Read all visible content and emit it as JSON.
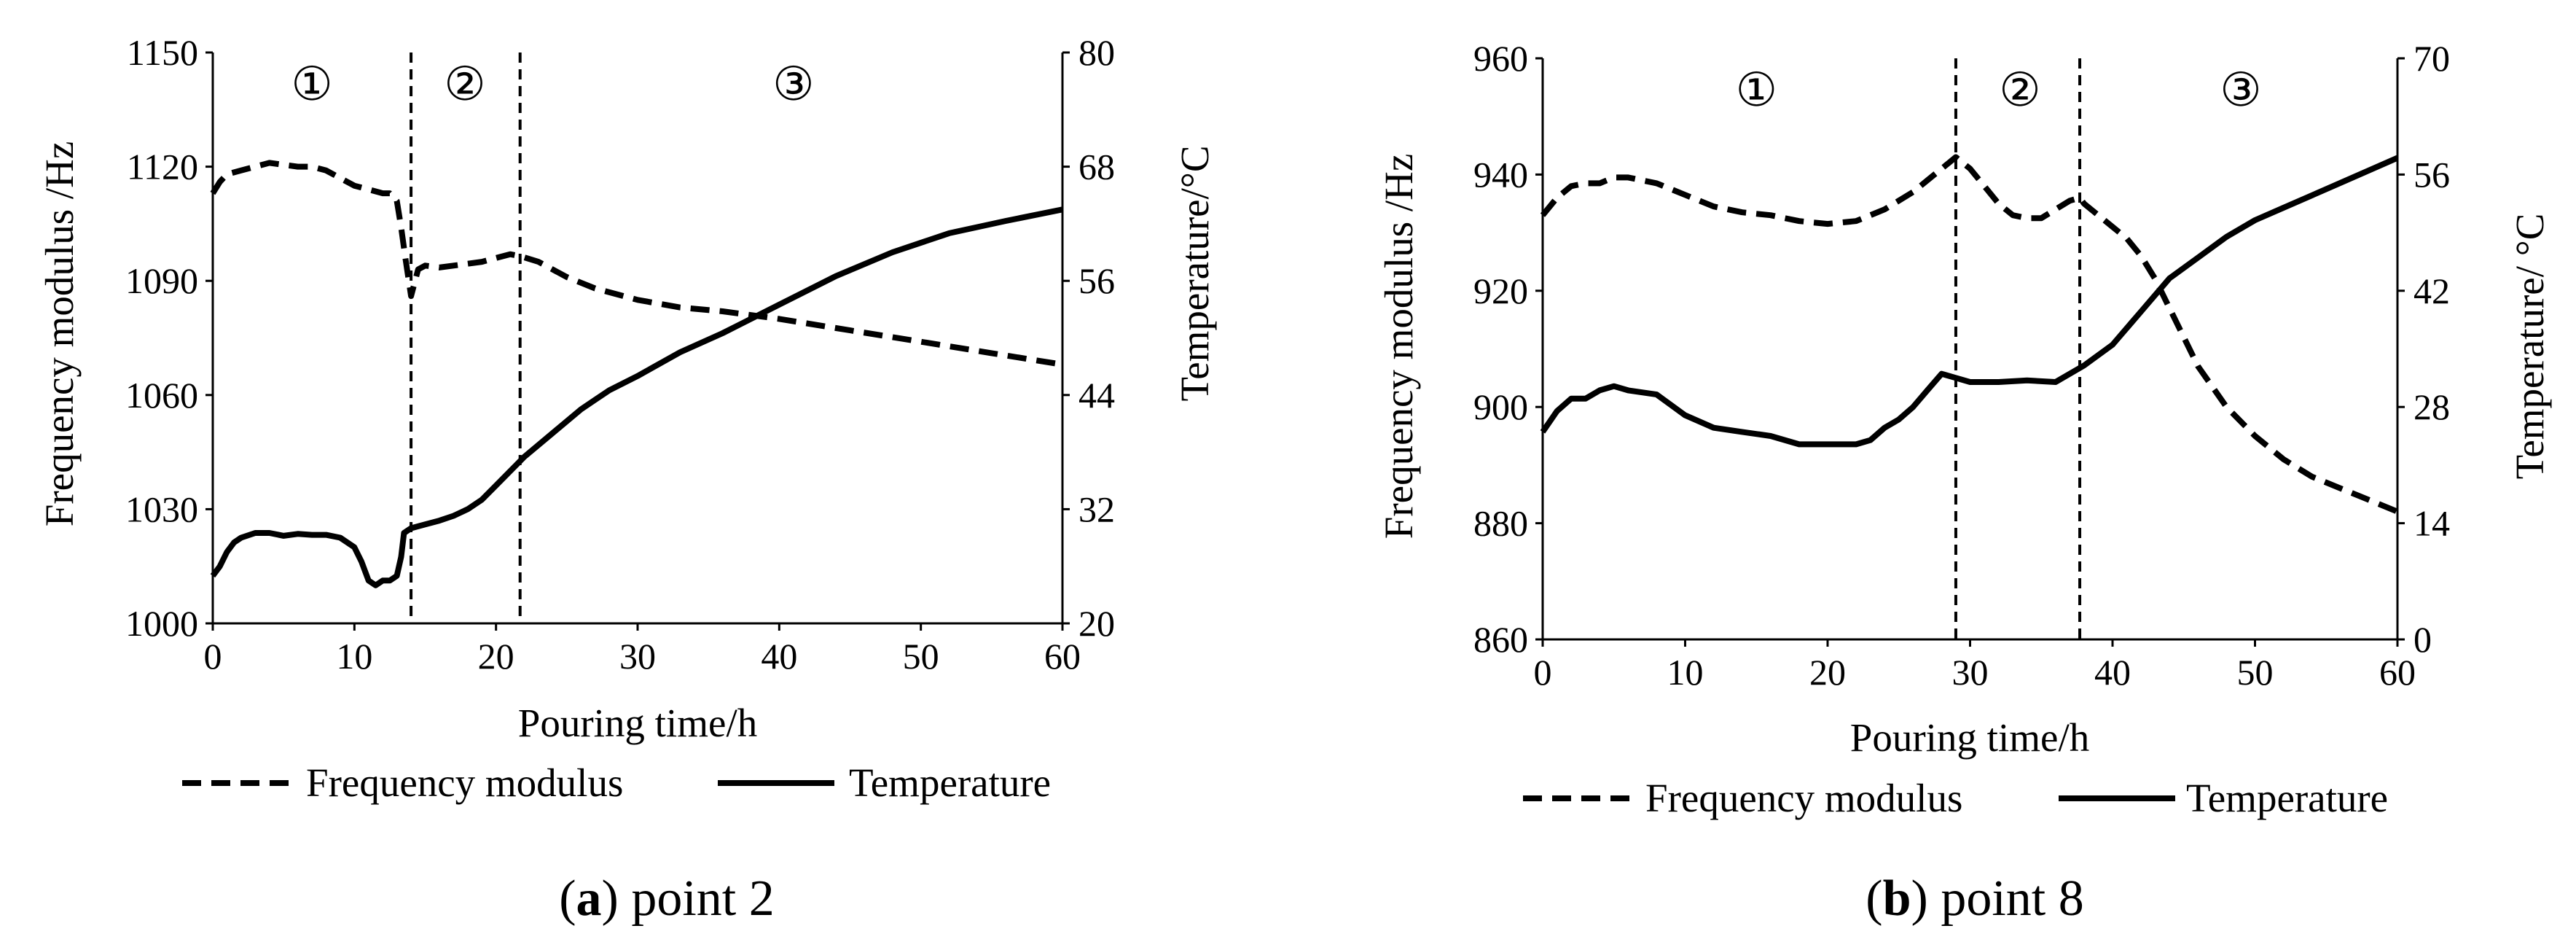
{
  "chart_data": [
    {
      "type": "line",
      "id": "a",
      "caption_label": "a",
      "caption_text": " point 2",
      "xlabel": "Pouring time/h",
      "ylabel": "Frequency modulus /Hz",
      "y2label": "Temperature/°C",
      "xlim": [
        0,
        60
      ],
      "ylim": [
        1000,
        1150
      ],
      "y2lim": [
        20,
        80
      ],
      "xticks": [
        0,
        10,
        20,
        30,
        40,
        50,
        60
      ],
      "yticks": [
        1000,
        1030,
        1060,
        1090,
        1120,
        1150
      ],
      "y2ticks": [
        20,
        32,
        44,
        56,
        68,
        80
      ],
      "dividers": [
        14,
        21.7
      ],
      "regions": [
        {
          "label": "①",
          "x": 7
        },
        {
          "label": "②",
          "x": 17.8
        },
        {
          "label": "③",
          "x": 41
        }
      ],
      "legend": [
        "Frequency modulus",
        "Temperature"
      ],
      "series": [
        {
          "name": "Frequency modulus",
          "axis": "left",
          "style": "dashed",
          "x": [
            0,
            0.5,
            1,
            2,
            3,
            4,
            5,
            6,
            7,
            8,
            9,
            10,
            11,
            12,
            12.5,
            13,
            13.3,
            13.6,
            14,
            14.5,
            15,
            16,
            17,
            18,
            19,
            20,
            21,
            21.7,
            23,
            25,
            27,
            30,
            33,
            36,
            40,
            45,
            50,
            55,
            60
          ],
          "values": [
            1113,
            1116,
            1118,
            1119,
            1120,
            1121,
            1120.5,
            1120,
            1120,
            1119,
            1117,
            1115,
            1114,
            1113,
            1113,
            1111,
            1104,
            1096,
            1086,
            1093,
            1094,
            1093.5,
            1094,
            1094.5,
            1095,
            1096,
            1097,
            1096.5,
            1095,
            1091,
            1088,
            1085,
            1083,
            1082,
            1080,
            1077,
            1074,
            1071,
            1068
          ]
        },
        {
          "name": "Temperature",
          "axis": "right",
          "style": "solid",
          "x": [
            0,
            0.5,
            1,
            1.5,
            2,
            3,
            4,
            5,
            6,
            7,
            8,
            9,
            10,
            10.5,
            11,
            11.5,
            12,
            12.5,
            13,
            13.3,
            13.5,
            14,
            15,
            16,
            17,
            18,
            19,
            20,
            21,
            22,
            24,
            26,
            27,
            28,
            30,
            33,
            36,
            40,
            44,
            48,
            52,
            56,
            60
          ],
          "values": [
            25,
            26,
            27.5,
            28.5,
            29,
            29.5,
            29.5,
            29.2,
            29.4,
            29.3,
            29.3,
            29,
            28,
            26.5,
            24.5,
            24,
            24.5,
            24.5,
            25,
            27,
            29.5,
            30,
            30.4,
            30.8,
            31.3,
            32,
            33,
            34.5,
            36,
            37.5,
            40,
            42.5,
            43.5,
            44.5,
            46,
            48.5,
            50.5,
            53.5,
            56.5,
            59,
            61,
            62.3,
            63.5
          ]
        }
      ]
    },
    {
      "type": "line",
      "id": "b",
      "caption_label": "b",
      "caption_text": " point 8",
      "xlabel": "Pouring time/h",
      "ylabel": "Frequency modulus /Hz",
      "y2label": "Temperature/ °C",
      "xlim": [
        0,
        60
      ],
      "ylim": [
        860,
        960
      ],
      "y2lim": [
        0,
        70
      ],
      "xticks": [
        0,
        10,
        20,
        30,
        40,
        50,
        60
      ],
      "yticks": [
        860,
        880,
        900,
        920,
        940,
        960
      ],
      "y2ticks": [
        0,
        14,
        28,
        42,
        56,
        70
      ],
      "dividers": [
        29,
        37.7
      ],
      "regions": [
        {
          "label": "①",
          "x": 15
        },
        {
          "label": "②",
          "x": 33.5
        },
        {
          "label": "③",
          "x": 49
        }
      ],
      "legend": [
        "Frequency modulus",
        "Temperature"
      ],
      "series": [
        {
          "name": "Frequency modulus",
          "axis": "left",
          "style": "dashed",
          "x": [
            0,
            1,
            2,
            3,
            4,
            5,
            6,
            8,
            10,
            12,
            14,
            16,
            18,
            20,
            22,
            24,
            26,
            27,
            28,
            28.5,
            29,
            30,
            31,
            32,
            33,
            34,
            35,
            36,
            37,
            37.7,
            38,
            39,
            40,
            41,
            42,
            43,
            44,
            45,
            46,
            48,
            50,
            52,
            54,
            56,
            58,
            60
          ],
          "values": [
            933,
            936,
            938,
            938.5,
            938.5,
            939.5,
            939.5,
            938.5,
            936.5,
            934.5,
            933.5,
            933,
            932,
            931.5,
            932,
            934,
            937,
            939,
            941,
            942,
            943,
            941,
            938,
            935,
            933,
            932.5,
            932.5,
            934,
            935.5,
            936,
            935,
            933,
            931,
            929,
            926,
            922,
            917,
            912,
            907,
            900,
            895,
            891,
            888,
            886,
            884,
            882
          ]
        },
        {
          "name": "Temperature",
          "axis": "right",
          "style": "solid",
          "x": [
            0,
            1,
            2,
            3,
            4,
            5,
            6,
            8,
            10,
            12,
            14,
            16,
            18,
            20,
            22,
            23,
            24,
            25,
            26,
            27,
            28,
            29,
            30,
            32,
            34,
            36,
            38,
            40,
            42,
            44,
            46,
            48,
            50,
            52,
            54,
            56,
            58,
            60
          ],
          "values": [
            25,
            27.5,
            29,
            29,
            30,
            30.5,
            30,
            29.5,
            27,
            25.5,
            25,
            24.5,
            23.5,
            23.5,
            23.5,
            24,
            25.5,
            26.5,
            28,
            30,
            32,
            31.5,
            31,
            31,
            31.2,
            31,
            33,
            35.5,
            39.5,
            43.5,
            46,
            48.5,
            50.5,
            52,
            53.5,
            55,
            56.5,
            58
          ]
        }
      ]
    }
  ]
}
